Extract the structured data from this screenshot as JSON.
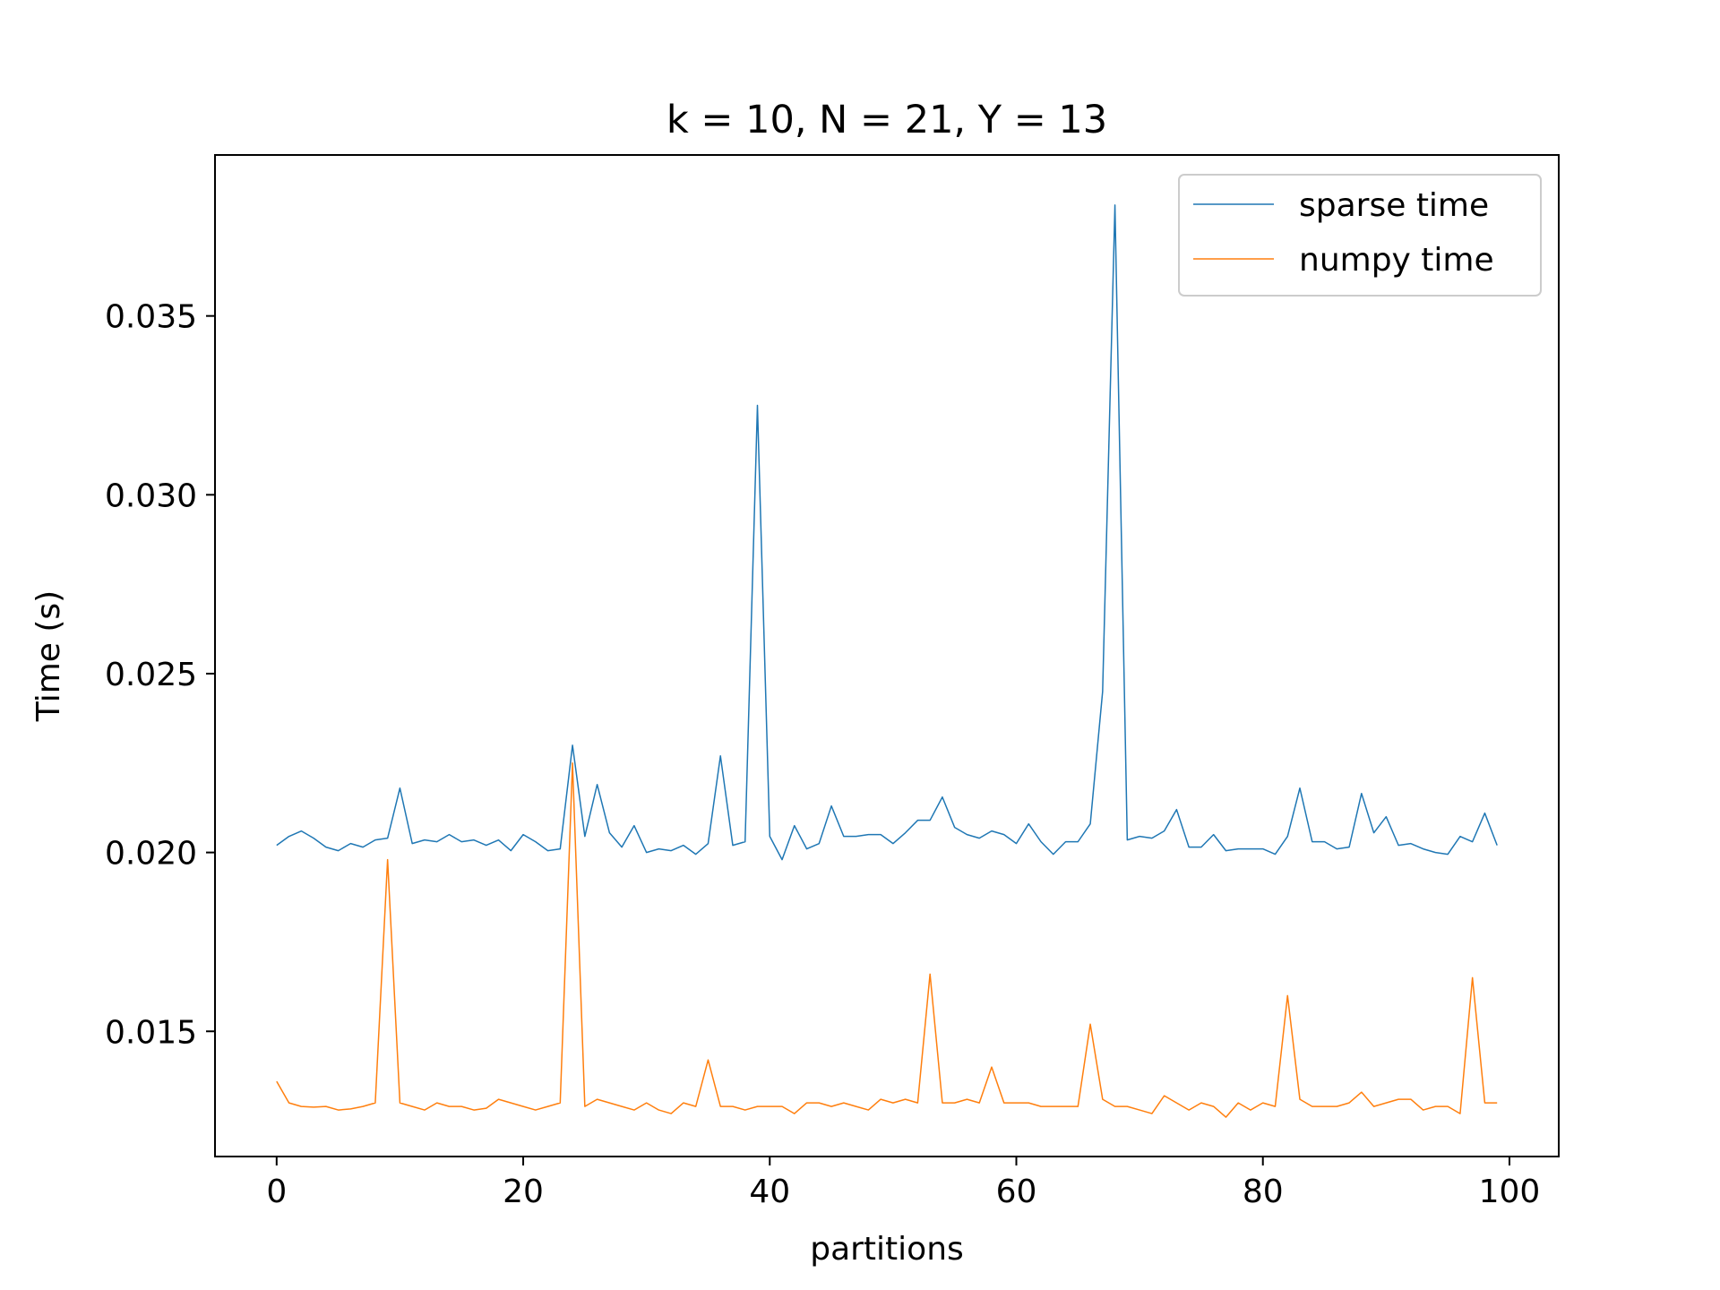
{
  "chart_data": {
    "type": "line",
    "title": "k = 10, N = 21, Y = 13",
    "xlabel": "partitions",
    "ylabel": "Time (s)",
    "xlim": [
      -5,
      104
    ],
    "ylim": [
      0.0115,
      0.0395
    ],
    "xticks": [
      0,
      20,
      40,
      60,
      80,
      100
    ],
    "xtick_labels": [
      "0",
      "20",
      "40",
      "60",
      "80",
      "100"
    ],
    "yticks": [
      0.015,
      0.02,
      0.025,
      0.03,
      0.035
    ],
    "ytick_labels": [
      "0.015",
      "0.020",
      "0.025",
      "0.030",
      "0.035"
    ],
    "grid": false,
    "legend_position": "top-right",
    "series": [
      {
        "name": "sparse time",
        "color": "#1f77b4",
        "x": [
          0,
          1,
          2,
          3,
          4,
          5,
          6,
          7,
          8,
          9,
          10,
          11,
          12,
          13,
          14,
          15,
          16,
          17,
          18,
          19,
          20,
          21,
          22,
          23,
          24,
          25,
          26,
          27,
          28,
          29,
          30,
          31,
          32,
          33,
          34,
          35,
          36,
          37,
          38,
          39,
          40,
          41,
          42,
          43,
          44,
          45,
          46,
          47,
          48,
          49,
          50,
          51,
          52,
          53,
          54,
          55,
          56,
          57,
          58,
          59,
          60,
          61,
          62,
          63,
          64,
          65,
          66,
          67,
          68,
          69,
          70,
          71,
          72,
          73,
          74,
          75,
          76,
          77,
          78,
          79,
          80,
          81,
          82,
          83,
          84,
          85,
          86,
          87,
          88,
          89,
          90,
          91,
          92,
          93,
          94,
          95,
          96,
          97,
          98,
          99
        ],
        "values": [
          0.0202,
          0.02045,
          0.0206,
          0.0204,
          0.02015,
          0.02005,
          0.02025,
          0.02015,
          0.02035,
          0.0204,
          0.0218,
          0.02025,
          0.02035,
          0.0203,
          0.0205,
          0.0203,
          0.02035,
          0.0202,
          0.02035,
          0.02005,
          0.0205,
          0.0203,
          0.02005,
          0.0201,
          0.023,
          0.02045,
          0.0219,
          0.02055,
          0.02015,
          0.02075,
          0.02,
          0.0201,
          0.02005,
          0.0202,
          0.01995,
          0.02025,
          0.0227,
          0.0202,
          0.0203,
          0.0325,
          0.02045,
          0.0198,
          0.02075,
          0.0201,
          0.02025,
          0.0213,
          0.02045,
          0.02045,
          0.0205,
          0.0205,
          0.02025,
          0.02055,
          0.0209,
          0.0209,
          0.02155,
          0.0207,
          0.0205,
          0.0204,
          0.0206,
          0.0205,
          0.02025,
          0.0208,
          0.0203,
          0.01995,
          0.0203,
          0.0203,
          0.0208,
          0.0245,
          0.0381,
          0.02035,
          0.02045,
          0.0204,
          0.0206,
          0.0212,
          0.02015,
          0.02015,
          0.0205,
          0.02005,
          0.0201,
          0.0201,
          0.0201,
          0.01995,
          0.02045,
          0.0218,
          0.0203,
          0.0203,
          0.0201,
          0.02015,
          0.02165,
          0.02055,
          0.021,
          0.0202,
          0.02025,
          0.0201,
          0.02,
          0.01995,
          0.02045,
          0.0203,
          0.0211,
          0.0202
        ]
      },
      {
        "name": "numpy time",
        "color": "#ff7f0e",
        "x": [
          0,
          1,
          2,
          3,
          4,
          5,
          6,
          7,
          8,
          9,
          10,
          11,
          12,
          13,
          14,
          15,
          16,
          17,
          18,
          19,
          20,
          21,
          22,
          23,
          24,
          25,
          26,
          27,
          28,
          29,
          30,
          31,
          32,
          33,
          34,
          35,
          36,
          37,
          38,
          39,
          40,
          41,
          42,
          43,
          44,
          45,
          46,
          47,
          48,
          49,
          50,
          51,
          52,
          53,
          54,
          55,
          56,
          57,
          58,
          59,
          60,
          61,
          62,
          63,
          64,
          65,
          66,
          67,
          68,
          69,
          70,
          71,
          72,
          73,
          74,
          75,
          76,
          77,
          78,
          79,
          80,
          81,
          82,
          83,
          84,
          85,
          86,
          87,
          88,
          89,
          90,
          91,
          92,
          93,
          94,
          95,
          96,
          97,
          98,
          99
        ],
        "values": [
          0.0136,
          0.013,
          0.0129,
          0.01288,
          0.0129,
          0.0128,
          0.01283,
          0.0129,
          0.013,
          0.0198,
          0.013,
          0.0129,
          0.0128,
          0.013,
          0.0129,
          0.0129,
          0.0128,
          0.01285,
          0.0131,
          0.013,
          0.0129,
          0.0128,
          0.0129,
          0.013,
          0.0225,
          0.0129,
          0.0131,
          0.013,
          0.0129,
          0.0128,
          0.013,
          0.0128,
          0.0127,
          0.013,
          0.0129,
          0.0142,
          0.0129,
          0.0129,
          0.0128,
          0.0129,
          0.0129,
          0.0129,
          0.0127,
          0.013,
          0.013,
          0.0129,
          0.013,
          0.0129,
          0.0128,
          0.0131,
          0.013,
          0.0131,
          0.013,
          0.0166,
          0.013,
          0.013,
          0.0131,
          0.013,
          0.014,
          0.013,
          0.013,
          0.013,
          0.0129,
          0.0129,
          0.0129,
          0.0129,
          0.0152,
          0.0131,
          0.0129,
          0.0129,
          0.0128,
          0.0127,
          0.0132,
          0.013,
          0.0128,
          0.013,
          0.0129,
          0.0126,
          0.013,
          0.0128,
          0.013,
          0.0129,
          0.016,
          0.0131,
          0.0129,
          0.0129,
          0.0129,
          0.013,
          0.0133,
          0.0129,
          0.013,
          0.0131,
          0.0131,
          0.0128,
          0.0129,
          0.0129,
          0.0127,
          0.0165,
          0.013,
          0.013
        ]
      }
    ]
  }
}
